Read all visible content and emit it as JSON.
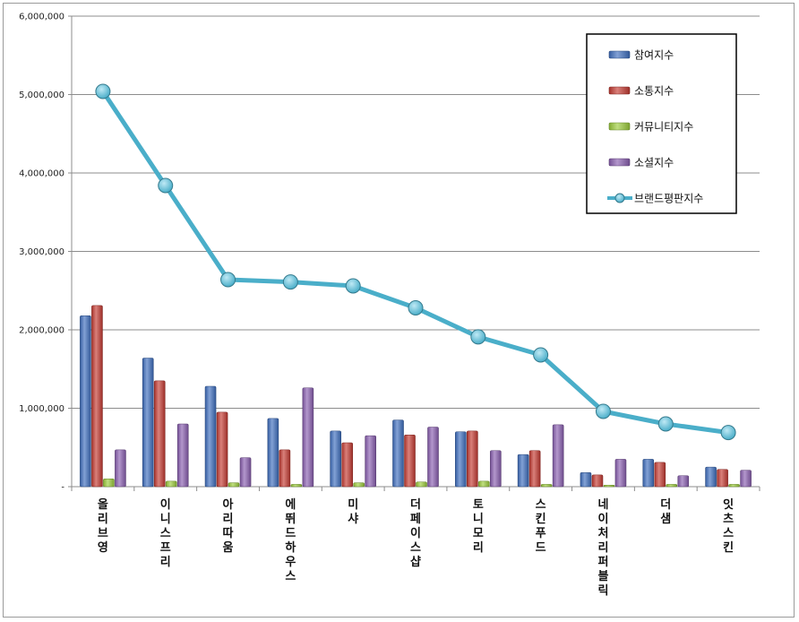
{
  "chart_data": {
    "type": "bar",
    "title": "",
    "xlabel": "",
    "ylabel": "",
    "ylim": [
      0,
      6000000
    ],
    "yticks": [
      0,
      1000000,
      2000000,
      3000000,
      4000000,
      5000000,
      6000000
    ],
    "ytick_labels": [
      "-",
      "1,000,000",
      "2,000,000",
      "3,000,000",
      "4,000,000",
      "5,000,000",
      "6,000,000"
    ],
    "grid": true,
    "legend_position": "top-right",
    "categories": [
      "올리브영",
      "이니스프리",
      "아리따움",
      "에뛰드하우스",
      "미샤",
      "더페이스샵",
      "토니모리",
      "스킨푸드",
      "네이처리퍼블릭",
      "더샘",
      "잇츠스킨"
    ],
    "series": [
      {
        "name": "참여지수",
        "kind": "bar",
        "color": "#3f6fbf",
        "values": [
          2180000,
          1640000,
          1280000,
          870000,
          710000,
          850000,
          700000,
          410000,
          180000,
          350000,
          250000
        ]
      },
      {
        "name": "소통지수",
        "kind": "bar",
        "color": "#c43b33",
        "values": [
          2310000,
          1350000,
          950000,
          470000,
          560000,
          660000,
          710000,
          460000,
          150000,
          310000,
          220000
        ]
      },
      {
        "name": "커뮤니티지수",
        "kind": "bar",
        "color": "#9ccc3c",
        "values": [
          100000,
          70000,
          50000,
          30000,
          50000,
          60000,
          70000,
          30000,
          20000,
          30000,
          30000
        ]
      },
      {
        "name": "소셜지수",
        "kind": "bar",
        "color": "#8a5fb0",
        "values": [
          470000,
          800000,
          370000,
          1260000,
          650000,
          760000,
          460000,
          790000,
          350000,
          140000,
          210000
        ]
      },
      {
        "name": "브랜드평판지수",
        "kind": "line",
        "color": "#4aaec9",
        "values": [
          5040000,
          3840000,
          2640000,
          2610000,
          2560000,
          2280000,
          1910000,
          1680000,
          960000,
          800000,
          690000
        ]
      }
    ]
  }
}
